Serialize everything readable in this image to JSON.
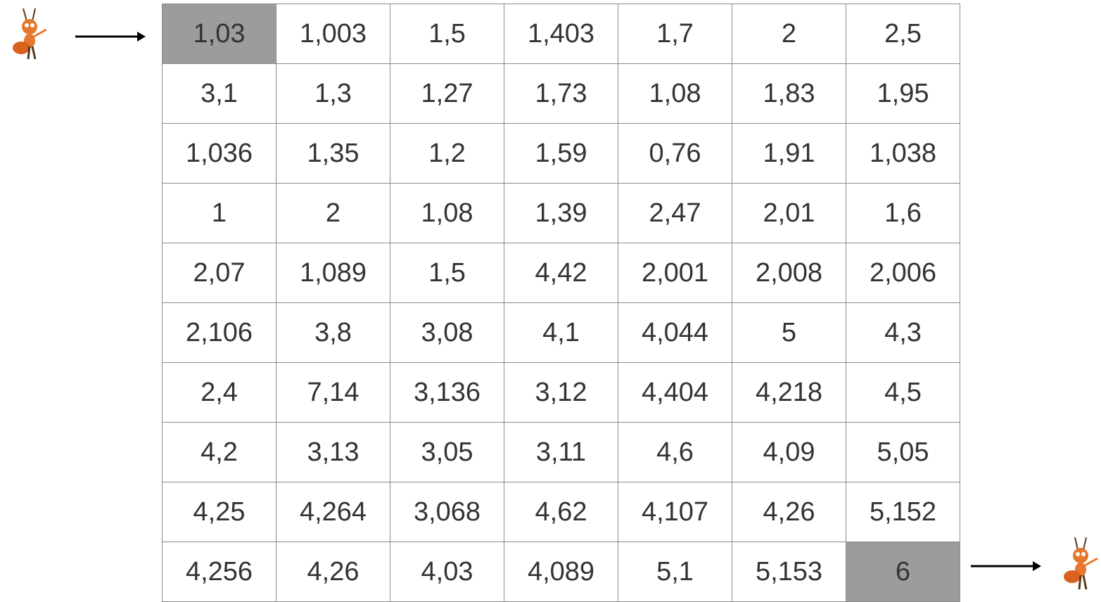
{
  "table": {
    "rows": [
      [
        "1,03",
        "1,003",
        "1,5",
        "1,403",
        "1,7",
        "2",
        "2,5"
      ],
      [
        "3,1",
        "1,3",
        "1,27",
        "1,73",
        "1,08",
        "1,83",
        "1,95"
      ],
      [
        "1,036",
        "1,35",
        "1,2",
        "1,59",
        "0,76",
        "1,91",
        "1,038"
      ],
      [
        "1",
        "2",
        "1,08",
        "1,39",
        "2,47",
        "2,01",
        "1,6"
      ],
      [
        "2,07",
        "1,089",
        "1,5",
        "4,42",
        "2,001",
        "2,008",
        "2,006"
      ],
      [
        "2,106",
        "3,8",
        "3,08",
        "4,1",
        "4,044",
        "5",
        "4,3"
      ],
      [
        "2,4",
        "7,14",
        "3,136",
        "3,12",
        "4,404",
        "4,218",
        "4,5"
      ],
      [
        "4,2",
        "3,13",
        "3,05",
        "3,11",
        "4,6",
        "4,09",
        "5,05"
      ],
      [
        "4,25",
        "4,264",
        "3,068",
        "4,62",
        "4,107",
        "4,26",
        "5,152"
      ],
      [
        "4,256",
        "4,26",
        "4,03",
        "4,089",
        "5,1",
        "5,153",
        "6"
      ]
    ],
    "highlighted_cells": [
      [
        0,
        0
      ],
      [
        9,
        6
      ]
    ]
  }
}
